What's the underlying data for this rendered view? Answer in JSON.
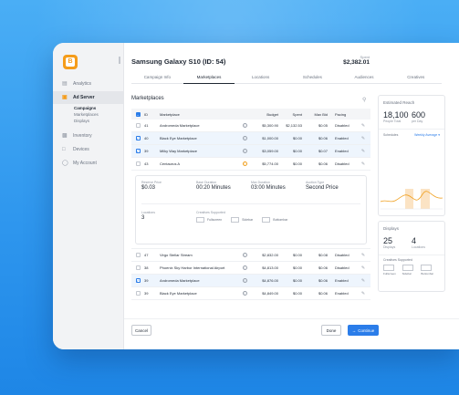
{
  "sidebar": {
    "logo": "B",
    "items": [
      {
        "label": "Analytics",
        "icon": "analytics-icon"
      },
      {
        "label": "Ad Server",
        "icon": "ad-server-icon"
      },
      {
        "label": "Inventory",
        "icon": "inventory-icon"
      },
      {
        "label": "Devices",
        "icon": "devices-icon"
      },
      {
        "label": "My Account",
        "icon": "account-icon"
      }
    ],
    "subitems": [
      "Campaigns",
      "Marketplaces",
      "Displays"
    ]
  },
  "header": {
    "title": "Samsung Galaxy S10 (ID: 54)",
    "spent_label": "Spent",
    "spent_value": "$2,382.01"
  },
  "tabs": [
    "Campaign Info",
    "Marketplaces",
    "Locations",
    "Schedules",
    "Audiences",
    "Creatives"
  ],
  "marketplaces": {
    "title": "Marketplaces",
    "columns": [
      "ID",
      "Marketplace",
      "Budget",
      "Spent",
      "Max Bid",
      "Pacing"
    ],
    "rows": [
      {
        "id": "41",
        "name": "Andromeda Marketplace",
        "budget": "$5,300.90",
        "spent": "$2,132.53",
        "bid": "$0.05",
        "pacing": "Disabled",
        "selected": false
      },
      {
        "id": "40",
        "name": "Black Eye Marketplace",
        "budget": "$1,000.00",
        "spent": "$0.00",
        "bid": "$0.06",
        "pacing": "Enabled",
        "selected": true
      },
      {
        "id": "39",
        "name": "Milky Way Marketplace",
        "budget": "$3,059.00",
        "spent": "$0.00",
        "bid": "$0.07",
        "pacing": "Enabled",
        "selected": true
      },
      {
        "id": "43",
        "name": "Centaurus A",
        "budget": "$5,774.00",
        "spent": "$0.00",
        "bid": "$0.06",
        "pacing": "Disabled",
        "selected": false
      }
    ],
    "rows_after": [
      {
        "id": "47",
        "name": "Virgo Stellar Stream",
        "budget": "$2,832.00",
        "spent": "$0.00",
        "bid": "$0.08",
        "pacing": "Disabled",
        "selected": false
      },
      {
        "id": "38",
        "name": "Phoenix Sky Harbor International Airport",
        "budget": "$4,813.00",
        "spent": "$0.00",
        "bid": "$0.06",
        "pacing": "Disabled",
        "selected": false
      },
      {
        "id": "39",
        "name": "Andromeda Marketplace",
        "budget": "$4,876.00",
        "spent": "$0.00",
        "bid": "$0.06",
        "pacing": "Enabled",
        "selected": true
      },
      {
        "id": "39",
        "name": "Black Eye Marketplace",
        "budget": "$4,849.00",
        "spent": "$0.00",
        "bid": "$0.06",
        "pacing": "Enabled",
        "selected": false
      }
    ],
    "detail": {
      "reserve_price_label": "Reserve Price",
      "reserve_price": "$0.03",
      "base_duration_label": "Base Duration",
      "base_duration": "00:20 Minutes",
      "max_duration_label": "Max Duration",
      "max_duration": "03:00 Minutes",
      "auction_type_label": "Auction Type",
      "auction_type": "Second Price",
      "locations_label": "Locations",
      "locations": "3",
      "creatives_label": "Creatives Supported",
      "creatives": [
        "Fullscreen",
        "Sidebar",
        "Bottombar"
      ]
    }
  },
  "estimated_reach": {
    "title": "Estimated Reach",
    "people_value": "18,100",
    "people_label": "People Total",
    "per_day_value": "600",
    "per_day_label": "per Day",
    "schedules_label": "Schedules",
    "schedules_select": "Weekly Average"
  },
  "displays": {
    "title": "Displays",
    "displays_value": "25",
    "displays_label": "Displays",
    "locations_value": "4",
    "locations_label": "Locations",
    "creatives_label": "Creatives Supported",
    "creatives": [
      "Fullscreen",
      "Sidebar",
      "Bottombar"
    ]
  },
  "footer": {
    "cancel": "Cancel",
    "done": "Done",
    "continue": "Continue"
  },
  "colors": {
    "accent": "#2b7de9",
    "brand": "#f59c1a",
    "background": "#2f97ee"
  }
}
